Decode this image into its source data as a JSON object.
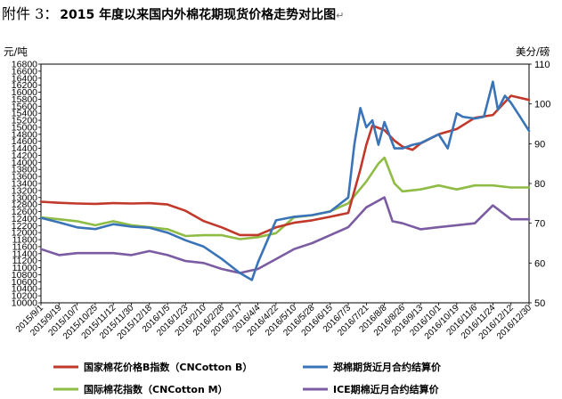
{
  "caption": {
    "prefix": "附件 3：",
    "title": "2015 年度以来国内外棉花期现货价格走势对比图",
    "mark": "↵"
  },
  "chart_data": {
    "type": "line",
    "left_axis": {
      "unit_label": "元/吨",
      "ylim": [
        10000,
        16800
      ],
      "ticks": [
        10000,
        10200,
        10400,
        10600,
        10800,
        11000,
        11200,
        11400,
        11600,
        11800,
        12000,
        12200,
        12400,
        12600,
        12800,
        13000,
        13200,
        13400,
        13600,
        13800,
        14000,
        14200,
        14400,
        14600,
        14800,
        15000,
        15200,
        15400,
        15600,
        15800,
        16000,
        16200,
        16400,
        16600,
        16800
      ]
    },
    "right_axis": {
      "unit_label": "美分/磅",
      "ylim": [
        50,
        110
      ],
      "ticks": [
        50,
        60,
        70,
        80,
        90,
        100,
        110
      ]
    },
    "x_tick_labels": [
      "2015/9/1",
      "2015/9/19",
      "2015/10/7",
      "2015/10/25",
      "2015/11/12",
      "2015/11/30",
      "2015/12/18",
      "2016/1/5",
      "2016/1/23",
      "2016/2/10",
      "2016/2/28",
      "2016/3/17",
      "2016/4/4",
      "2016/4/22",
      "2016/5/10",
      "2016/5/28",
      "2016/6/15",
      "2016/7/3",
      "2016/7/21",
      "2016/8/8",
      "2016/8/26",
      "2016/9/13",
      "2016/10/1",
      "2016/10/19",
      "2016/11/6",
      "2016/11/24",
      "2016/12/12",
      "2016/12/30"
    ],
    "x_tick_positions": [
      0,
      18,
      36,
      54,
      72,
      90,
      108,
      126,
      144,
      162,
      180,
      198,
      216,
      234,
      252,
      270,
      288,
      306,
      324,
      342,
      360,
      378,
      396,
      414,
      432,
      450,
      468,
      486
    ],
    "series": [
      {
        "name": "国家棉花价格B指数（CNCotton B）",
        "axis": "left",
        "color": "#c0392b",
        "x": [
          0,
          18,
          36,
          54,
          72,
          90,
          108,
          126,
          144,
          162,
          180,
          198,
          216,
          234,
          252,
          270,
          288,
          306,
          318,
          324,
          330,
          342,
          352,
          360,
          370,
          378,
          396,
          414,
          432,
          450,
          468,
          486
        ],
        "y": [
          12880,
          12850,
          12830,
          12820,
          12840,
          12830,
          12840,
          12800,
          12620,
          12330,
          12150,
          11930,
          11930,
          12150,
          12280,
          12350,
          12450,
          12560,
          13800,
          14500,
          15050,
          14920,
          14620,
          14450,
          14360,
          14540,
          14800,
          14950,
          15270,
          15350,
          15900,
          15780
        ]
      },
      {
        "name": "郑棉期货近月合约结算价",
        "axis": "left",
        "color": "#3a74b8",
        "x": [
          0,
          18,
          36,
          54,
          72,
          90,
          108,
          126,
          144,
          162,
          180,
          198,
          210,
          216,
          234,
          252,
          270,
          288,
          306,
          312,
          318,
          324,
          330,
          336,
          342,
          352,
          360,
          370,
          378,
          396,
          405,
          414,
          420,
          432,
          441,
          450,
          455,
          462,
          468,
          477,
          486
        ],
        "y": [
          12420,
          12290,
          12150,
          12100,
          12240,
          12170,
          12140,
          12000,
          11780,
          11600,
          11250,
          10850,
          10650,
          11150,
          12350,
          12450,
          12500,
          12600,
          13000,
          14500,
          15550,
          15000,
          15200,
          14500,
          15150,
          14400,
          14400,
          14500,
          14550,
          14800,
          14400,
          15400,
          15300,
          15250,
          15300,
          16300,
          15500,
          15900,
          15700,
          15300,
          14900
        ]
      },
      {
        "name": "国际棉花指数（CNCotton M）",
        "axis": "right",
        "color": "#8fbc45",
        "x": [
          0,
          18,
          36,
          54,
          72,
          90,
          108,
          126,
          144,
          162,
          180,
          198,
          216,
          234,
          252,
          270,
          288,
          306,
          324,
          336,
          342,
          352,
          360,
          378,
          396,
          414,
          432,
          450,
          468,
          486
        ],
        "y": [
          71.5,
          71.0,
          70.5,
          69.5,
          70.5,
          69.5,
          69.0,
          68.5,
          66.8,
          67.0,
          67.0,
          66.0,
          66.5,
          67.5,
          71.5,
          72.0,
          73.0,
          75.0,
          80.5,
          85.0,
          86.5,
          80.0,
          78.0,
          78.5,
          79.5,
          78.5,
          79.5,
          79.5,
          79.0,
          79.0
        ]
      },
      {
        "name": "ICE期棉近月合约结算价",
        "axis": "right",
        "color": "#7b5ca3",
        "x": [
          0,
          18,
          36,
          54,
          72,
          90,
          108,
          126,
          144,
          162,
          180,
          198,
          216,
          234,
          252,
          270,
          288,
          306,
          324,
          342,
          350,
          360,
          378,
          396,
          414,
          432,
          450,
          468,
          486
        ],
        "y": [
          63.5,
          62.0,
          62.5,
          62.5,
          62.5,
          62.0,
          63.0,
          62.0,
          60.5,
          60.0,
          58.5,
          57.5,
          58.5,
          61.0,
          63.5,
          65.0,
          67.0,
          69.0,
          74.0,
          76.5,
          70.5,
          70.0,
          68.5,
          69.0,
          69.5,
          70.0,
          74.5,
          71.0,
          71.0
        ]
      }
    ],
    "legend_position": "bottom",
    "grid": false
  }
}
